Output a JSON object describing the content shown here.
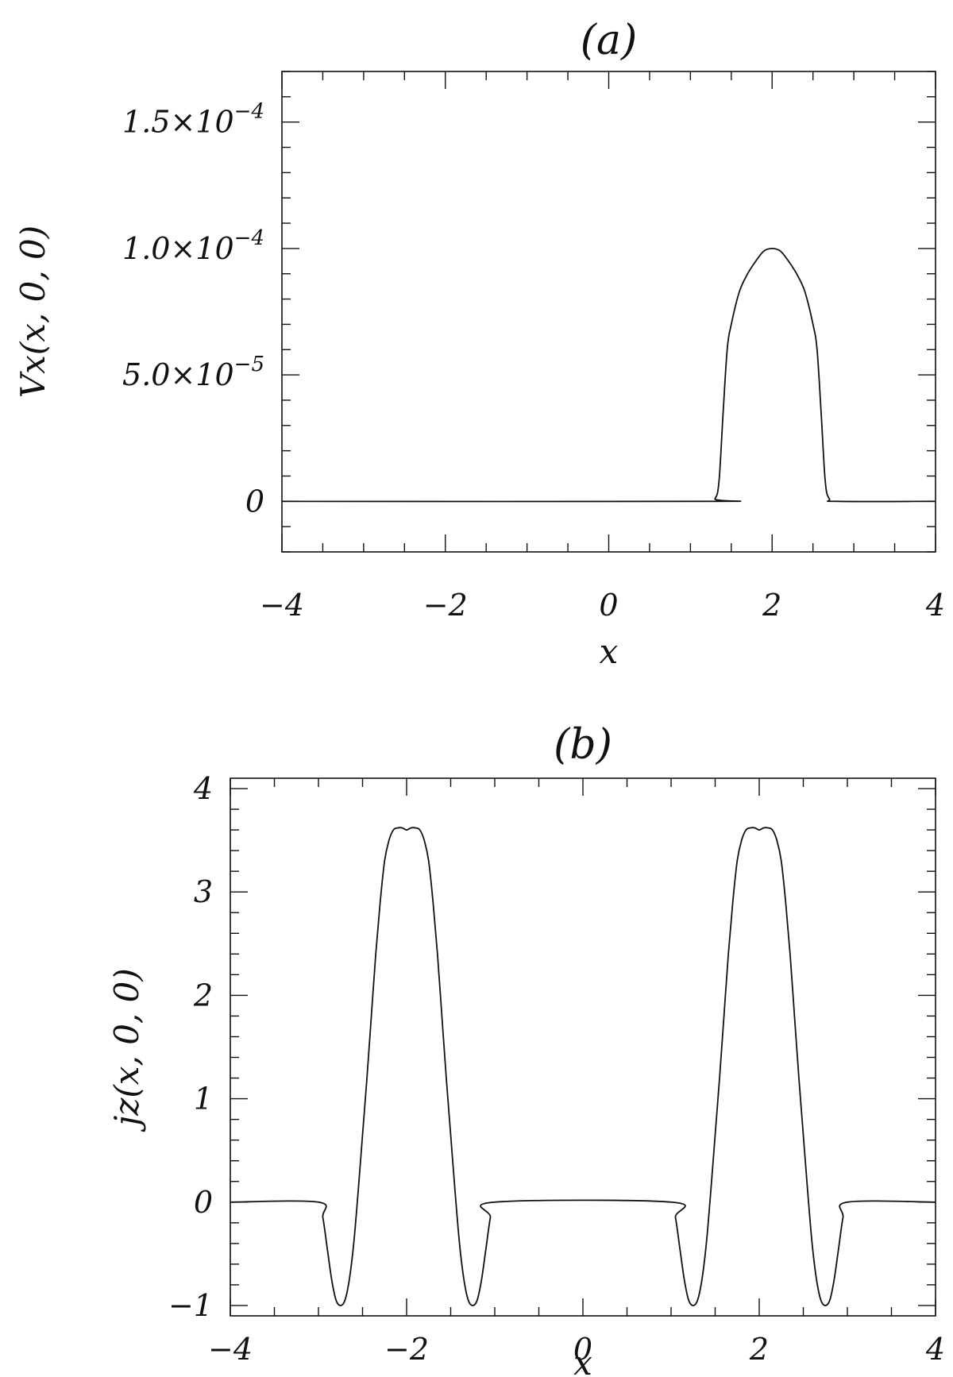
{
  "chart_data": [
    {
      "type": "line",
      "title": "(a)",
      "xlabel": "x",
      "ylabel": "Vx(x, 0, 0)",
      "xlim": [
        -4,
        4
      ],
      "ylim": [
        -2e-05,
        0.00017
      ],
      "x_ticks": [
        {
          "value": -4,
          "label": "−4"
        },
        {
          "value": -2,
          "label": "−2"
        },
        {
          "value": 0,
          "label": "0"
        },
        {
          "value": 2,
          "label": "2"
        },
        {
          "value": 4,
          "label": "4"
        }
      ],
      "x_minor_step": 0.5,
      "y_ticks": [
        {
          "value": 0,
          "label": "0"
        },
        {
          "value": 5e-05,
          "mant": "5.0×10",
          "exp": "−5"
        },
        {
          "value": 0.0001,
          "mant": "1.0×10",
          "exp": "−4"
        },
        {
          "value": 0.00015,
          "mant": "1.5×10",
          "exp": "−4"
        }
      ],
      "y_minor_step": 1e-05,
      "grid": false,
      "series": [
        {
          "x": [
            -4,
            1.2,
            1.3,
            1.35,
            1.4,
            1.45,
            1.5,
            1.6,
            1.7,
            1.8,
            1.9,
            2.0,
            2.1,
            2.2,
            2.3,
            2.4,
            2.5,
            2.55,
            2.6,
            2.65,
            2.7,
            2.8,
            4
          ],
          "y": [
            0,
            0,
            1e-06,
            8e-06,
            3.5e-05,
            6e-05,
            7e-05,
            8.3e-05,
            9e-05,
            9.5e-05,
            9.9e-05,
            0.0001,
            9.9e-05,
            9.5e-05,
            9e-05,
            8.3e-05,
            7e-05,
            6e-05,
            3.5e-05,
            8e-06,
            1e-06,
            0,
            0
          ]
        }
      ]
    },
    {
      "type": "line",
      "title": "(b)",
      "xlabel": "x",
      "ylabel": "jz(x, 0, 0)",
      "xlim": [
        -4,
        4
      ],
      "ylim": [
        -1.1,
        4.1
      ],
      "x_ticks": [
        {
          "value": -4,
          "label": "−4"
        },
        {
          "value": -2,
          "label": "−2"
        },
        {
          "value": 0,
          "label": "0"
        },
        {
          "value": 2,
          "label": "2"
        },
        {
          "value": 4,
          "label": "4"
        }
      ],
      "x_minor_step": 0.5,
      "y_ticks": [
        {
          "value": -1,
          "label": "−1"
        },
        {
          "value": 0,
          "label": "0"
        },
        {
          "value": 1,
          "label": "1"
        },
        {
          "value": 2,
          "label": "2"
        },
        {
          "value": 3,
          "label": "3"
        },
        {
          "value": 4,
          "label": "4"
        }
      ],
      "y_minor_step": 0.2,
      "grid": false,
      "series": [
        {
          "x": [
            -4,
            -3.0,
            -2.95,
            -2.9,
            -2.85,
            -2.8,
            -2.75,
            -2.7,
            -2.65,
            -2.6,
            -2.55,
            -2.5,
            -2.45,
            -2.4,
            -2.35,
            -2.3,
            -2.25,
            -2.2,
            -2.15,
            -2.1,
            -2.05,
            -2.0,
            -1.95,
            -1.9,
            -1.85,
            -1.8,
            -1.75,
            -1.7,
            -1.65,
            -1.6,
            -1.55,
            -1.5,
            -1.45,
            -1.4,
            -1.35,
            -1.3,
            -1.25,
            -1.2,
            -1.15,
            -1.1,
            -1.05,
            -1.0,
            1.0,
            1.05,
            1.1,
            1.15,
            1.2,
            1.25,
            1.3,
            1.35,
            1.4,
            1.45,
            1.5,
            1.55,
            1.6,
            1.65,
            1.7,
            1.75,
            1.8,
            1.85,
            1.9,
            1.95,
            2.0,
            2.05,
            2.1,
            2.15,
            2.2,
            2.25,
            2.3,
            2.35,
            2.4,
            2.45,
            2.5,
            2.55,
            2.6,
            2.65,
            2.7,
            2.75,
            2.8,
            2.85,
            2.9,
            2.95,
            3.0,
            4
          ],
          "y": [
            0,
            0,
            -0.15,
            -0.45,
            -0.75,
            -0.95,
            -1.0,
            -0.95,
            -0.75,
            -0.4,
            0.1,
            0.65,
            1.2,
            1.8,
            2.4,
            2.9,
            3.3,
            3.5,
            3.6,
            3.62,
            3.62,
            3.6,
            3.62,
            3.62,
            3.6,
            3.5,
            3.3,
            2.9,
            2.4,
            1.8,
            1.2,
            0.65,
            0.1,
            -0.4,
            -0.75,
            -0.95,
            -1.0,
            -0.95,
            -0.75,
            -0.45,
            -0.15,
            0,
            0,
            -0.15,
            -0.45,
            -0.75,
            -0.95,
            -1.0,
            -0.95,
            -0.75,
            -0.4,
            0.1,
            0.65,
            1.2,
            1.8,
            2.4,
            2.9,
            3.3,
            3.5,
            3.6,
            3.62,
            3.62,
            3.6,
            3.62,
            3.62,
            3.6,
            3.5,
            3.3,
            2.9,
            2.4,
            1.8,
            1.2,
            0.65,
            0.1,
            -0.4,
            -0.75,
            -0.95,
            -1.0,
            -0.95,
            -0.75,
            -0.45,
            -0.15,
            0,
            0
          ]
        }
      ]
    }
  ]
}
